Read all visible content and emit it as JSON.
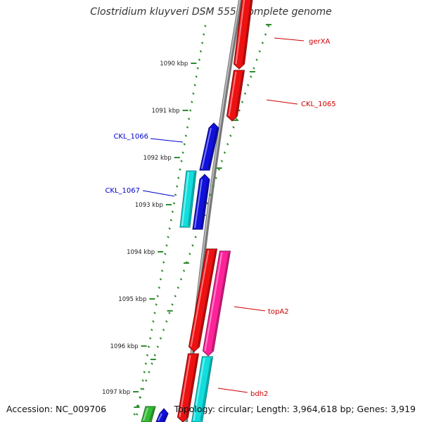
{
  "title": "Clostridium kluyveri DSM 555, complete genome",
  "footer": {
    "accession": "Accession: NC_009706",
    "topology": "Topology: circular; Length: 3,964,618 bp; Genes: 3,919"
  },
  "colors": {
    "backbone": "#888888",
    "ticks": "#2e8b2e",
    "red": "#ee1111",
    "blue": "#1111dd",
    "cyan": "#11dddd",
    "pink": "#ff2299",
    "green": "#33bb33",
    "label_red": "#cc0000",
    "label_blue": "#0000cc"
  },
  "ticks": [
    {
      "label": "1090 kbp"
    },
    {
      "label": "1091 kbp"
    },
    {
      "label": "1092 kbp"
    },
    {
      "label": "1093 kbp"
    },
    {
      "label": "1094 kbp"
    },
    {
      "label": "1095 kbp"
    },
    {
      "label": "1096 kbp"
    },
    {
      "label": "1097 kbp"
    }
  ],
  "genes": [
    {
      "name": "gerXA",
      "strand": "+",
      "color": "red",
      "labeled": true
    },
    {
      "name": "CKL_1065",
      "strand": "+",
      "color": "red",
      "labeled": true
    },
    {
      "name": "CKL_1066",
      "strand": "-",
      "color": "blue",
      "labeled": true
    },
    {
      "name": "CKL_1067",
      "strand": "-",
      "color": "blue",
      "labeled": true
    },
    {
      "name": "",
      "strand": "-",
      "color": "cyan",
      "labeled": false
    },
    {
      "name": "",
      "strand": "+",
      "color": "red",
      "labeled": false
    },
    {
      "name": "topA2",
      "strand": "+",
      "color": "pink",
      "labeled": true
    },
    {
      "name": "",
      "strand": "+",
      "color": "red",
      "labeled": false
    },
    {
      "name": "bdh2",
      "strand": "+",
      "color": "cyan",
      "labeled": true
    },
    {
      "name": "",
      "strand": "-",
      "color": "green",
      "labeled": false
    },
    {
      "name": "",
      "strand": "-",
      "color": "blue",
      "labeled": false
    }
  ]
}
